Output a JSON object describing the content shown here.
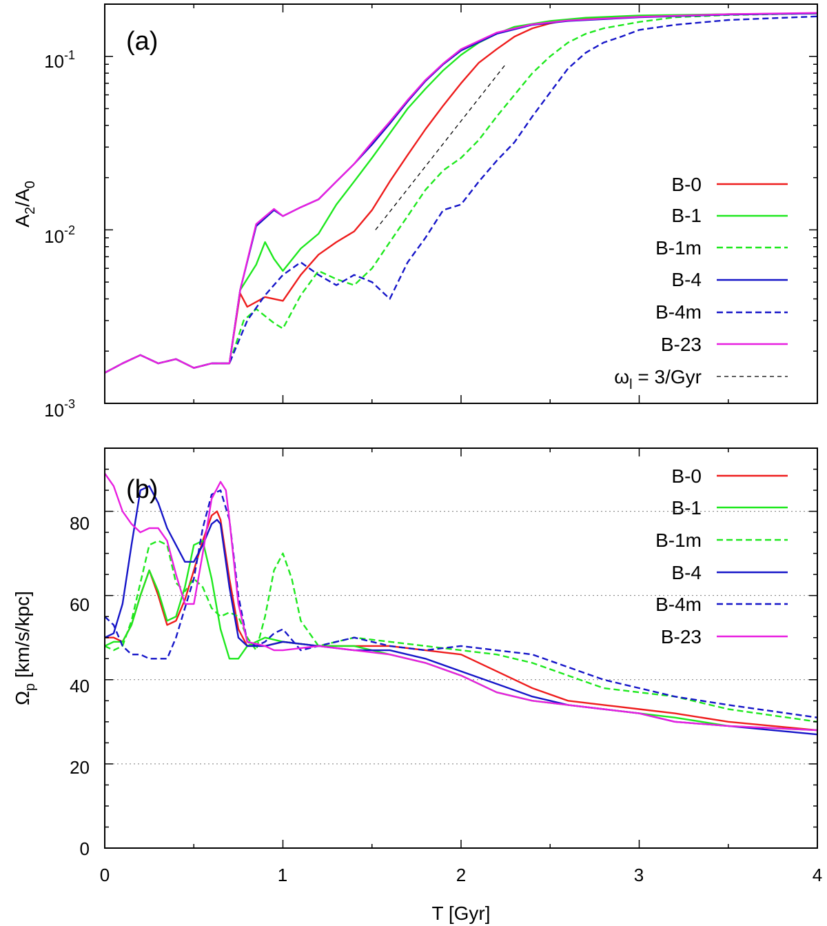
{
  "chart_data": [
    {
      "panel": "(a)",
      "type": "line",
      "ylabel": "A2/A0",
      "yscale": "log",
      "xlim": [
        0,
        4
      ],
      "ylim": [
        0.001,
        0.2
      ],
      "x_ticks": [
        0,
        1,
        2,
        3,
        4
      ],
      "y_tick_labels": [
        {
          "value": 0.1,
          "base": "10",
          "exp": "-1"
        },
        {
          "value": 0.01,
          "base": "10",
          "exp": "-2"
        },
        {
          "value": 0.001,
          "base": "10",
          "exp": "-3"
        }
      ],
      "legend_position": "right",
      "series": [
        {
          "name": "B-0",
          "color": "#ee1c1c",
          "dash": "solid",
          "x": [
            0,
            0.1,
            0.2,
            0.3,
            0.4,
            0.5,
            0.6,
            0.7,
            0.76,
            0.8,
            0.9,
            1.0,
            1.1,
            1.2,
            1.3,
            1.4,
            1.5,
            1.6,
            1.7,
            1.8,
            1.9,
            2.0,
            2.1,
            2.2,
            2.3,
            2.4,
            2.5,
            2.6,
            2.7,
            2.8,
            3.0,
            3.2,
            3.5,
            4.0
          ],
          "y": [
            0.0015,
            0.0017,
            0.0019,
            0.0017,
            0.0018,
            0.0016,
            0.0017,
            0.0017,
            0.0043,
            0.0036,
            0.0041,
            0.0039,
            0.0055,
            0.0072,
            0.0085,
            0.0098,
            0.013,
            0.019,
            0.027,
            0.038,
            0.052,
            0.07,
            0.092,
            0.11,
            0.13,
            0.145,
            0.155,
            0.162,
            0.165,
            0.168,
            0.17,
            0.172,
            0.175,
            0.177
          ]
        },
        {
          "name": "B-1",
          "color": "#1ee81e",
          "dash": "solid",
          "x": [
            0,
            0.1,
            0.2,
            0.3,
            0.4,
            0.5,
            0.6,
            0.7,
            0.76,
            0.85,
            0.9,
            0.95,
            1.0,
            1.1,
            1.2,
            1.3,
            1.4,
            1.5,
            1.6,
            1.7,
            1.8,
            1.9,
            2.0,
            2.1,
            2.2,
            2.3,
            2.5,
            2.7,
            3.0,
            3.5,
            4.0
          ],
          "y": [
            0.0015,
            0.0017,
            0.0019,
            0.0017,
            0.0018,
            0.0016,
            0.0017,
            0.0017,
            0.0045,
            0.0063,
            0.0085,
            0.0068,
            0.0058,
            0.0078,
            0.0095,
            0.014,
            0.019,
            0.026,
            0.036,
            0.05,
            0.065,
            0.083,
            0.102,
            0.12,
            0.135,
            0.148,
            0.16,
            0.167,
            0.172,
            0.175,
            0.177
          ]
        },
        {
          "name": "B-1m",
          "color": "#1ee81e",
          "dash": "dashed",
          "x": [
            0,
            0.1,
            0.2,
            0.3,
            0.4,
            0.5,
            0.6,
            0.7,
            0.78,
            0.85,
            0.95,
            1.0,
            1.1,
            1.2,
            1.3,
            1.4,
            1.5,
            1.6,
            1.7,
            1.8,
            1.9,
            2.0,
            2.1,
            2.2,
            2.3,
            2.4,
            2.5,
            2.6,
            2.7,
            2.8,
            3.0,
            3.2,
            3.5,
            4.0
          ],
          "y": [
            0.0015,
            0.0017,
            0.0019,
            0.0017,
            0.0018,
            0.0016,
            0.0017,
            0.0017,
            0.003,
            0.0035,
            0.0029,
            0.0027,
            0.0042,
            0.0058,
            0.0052,
            0.0048,
            0.006,
            0.0085,
            0.012,
            0.017,
            0.022,
            0.026,
            0.033,
            0.045,
            0.06,
            0.08,
            0.1,
            0.12,
            0.135,
            0.145,
            0.158,
            0.168,
            0.173,
            0.177
          ]
        },
        {
          "name": "B-4",
          "color": "#1515c8",
          "dash": "solid",
          "x": [
            0,
            0.1,
            0.2,
            0.3,
            0.4,
            0.5,
            0.6,
            0.7,
            0.76,
            0.85,
            0.95,
            1.0,
            1.1,
            1.2,
            1.3,
            1.4,
            1.5,
            1.6,
            1.7,
            1.8,
            1.9,
            2.0,
            2.2,
            2.4,
            2.6,
            3.0,
            3.5,
            4.0
          ],
          "y": [
            0.0015,
            0.0017,
            0.0019,
            0.0017,
            0.0018,
            0.0016,
            0.0017,
            0.0017,
            0.0045,
            0.0105,
            0.013,
            0.012,
            0.0135,
            0.015,
            0.019,
            0.024,
            0.031,
            0.041,
            0.055,
            0.072,
            0.09,
            0.108,
            0.135,
            0.152,
            0.16,
            0.168,
            0.174,
            0.177
          ]
        },
        {
          "name": "B-4m",
          "color": "#1515c8",
          "dash": "dashed",
          "x": [
            0,
            0.1,
            0.2,
            0.3,
            0.4,
            0.5,
            0.6,
            0.7,
            0.8,
            0.9,
            1.0,
            1.1,
            1.2,
            1.3,
            1.4,
            1.5,
            1.6,
            1.7,
            1.8,
            1.9,
            2.0,
            2.1,
            2.2,
            2.3,
            2.4,
            2.5,
            2.6,
            2.7,
            2.8,
            2.9,
            3.0,
            3.2,
            3.5,
            4.0
          ],
          "y": [
            0.0015,
            0.0017,
            0.0019,
            0.0017,
            0.0018,
            0.0016,
            0.0017,
            0.0017,
            0.003,
            0.0042,
            0.0055,
            0.0065,
            0.0055,
            0.0048,
            0.0055,
            0.005,
            0.004,
            0.0065,
            0.009,
            0.013,
            0.014,
            0.019,
            0.025,
            0.032,
            0.045,
            0.062,
            0.085,
            0.105,
            0.12,
            0.13,
            0.142,
            0.152,
            0.162,
            0.17
          ]
        },
        {
          "name": "B-23",
          "color": "#e81ee0",
          "dash": "solid",
          "x": [
            0,
            0.1,
            0.2,
            0.3,
            0.4,
            0.5,
            0.6,
            0.7,
            0.76,
            0.85,
            0.95,
            1.0,
            1.1,
            1.2,
            1.3,
            1.4,
            1.5,
            1.6,
            1.7,
            1.8,
            1.9,
            2.0,
            2.2,
            2.4,
            2.6,
            3.0,
            3.5,
            4.0
          ],
          "y": [
            0.0015,
            0.0017,
            0.0019,
            0.0017,
            0.0018,
            0.0016,
            0.0017,
            0.0017,
            0.0045,
            0.0108,
            0.0132,
            0.012,
            0.0135,
            0.015,
            0.019,
            0.024,
            0.032,
            0.042,
            0.056,
            0.073,
            0.091,
            0.11,
            0.137,
            0.153,
            0.161,
            0.169,
            0.175,
            0.178
          ]
        },
        {
          "name": "ωl = 3/Gyr",
          "color": "#000000",
          "dash": "fine",
          "x": [
            1.52,
            2.25
          ],
          "y": [
            0.01,
            0.09
          ]
        }
      ]
    },
    {
      "panel": "(b)",
      "type": "line",
      "ylabel": "Ωp [km/s/kpc]",
      "xlabel": "T [Gyr]",
      "xlim": [
        0,
        4
      ],
      "ylim": [
        0,
        95
      ],
      "x_ticks": [
        0,
        1,
        2,
        3,
        4
      ],
      "y_ticks": [
        0,
        20,
        40,
        60,
        80
      ],
      "grid_y": [
        20,
        40,
        60,
        80
      ],
      "legend_position": "top-right",
      "series": [
        {
          "name": "B-0",
          "color": "#ee1c1c",
          "dash": "solid",
          "x": [
            0,
            0.05,
            0.1,
            0.15,
            0.2,
            0.25,
            0.3,
            0.35,
            0.4,
            0.45,
            0.5,
            0.55,
            0.6,
            0.63,
            0.65,
            0.7,
            0.75,
            0.8,
            0.9,
            1.0,
            1.2,
            1.4,
            1.6,
            1.8,
            2.0,
            2.2,
            2.4,
            2.6,
            2.8,
            3.0,
            3.2,
            3.5,
            4.0
          ],
          "y": [
            50,
            50,
            49,
            53,
            60,
            66,
            60,
            53,
            54,
            59,
            66,
            73,
            79,
            80,
            78,
            64,
            52,
            48,
            48,
            49,
            48,
            48,
            48,
            47,
            46,
            42,
            38,
            35,
            34,
            33,
            32,
            30,
            28
          ]
        },
        {
          "name": "B-1",
          "color": "#1ee81e",
          "dash": "solid",
          "x": [
            0,
            0.05,
            0.1,
            0.15,
            0.2,
            0.25,
            0.3,
            0.35,
            0.4,
            0.45,
            0.5,
            0.55,
            0.6,
            0.65,
            0.7,
            0.75,
            0.8,
            0.9,
            1.0,
            1.2,
            1.4,
            1.6,
            1.8,
            2.0,
            2.2,
            2.4,
            2.6,
            2.8,
            3.0,
            3.2,
            3.5,
            4.0
          ],
          "y": [
            48,
            49,
            49,
            53,
            60,
            66,
            61,
            54,
            55,
            62,
            72,
            73,
            64,
            52,
            45,
            45,
            48,
            50,
            49,
            48,
            48,
            46,
            44,
            41,
            37,
            35,
            34,
            33,
            32,
            31,
            29,
            28
          ]
        },
        {
          "name": "B-1m",
          "color": "#1ee81e",
          "dash": "dashed",
          "x": [
            0,
            0.05,
            0.1,
            0.15,
            0.2,
            0.25,
            0.3,
            0.35,
            0.4,
            0.45,
            0.5,
            0.55,
            0.6,
            0.65,
            0.7,
            0.75,
            0.8,
            0.85,
            0.9,
            0.95,
            1.0,
            1.05,
            1.1,
            1.2,
            1.4,
            1.6,
            1.8,
            2.0,
            2.2,
            2.4,
            2.6,
            2.8,
            3.0,
            3.2,
            3.5,
            4.0
          ],
          "y": [
            48,
            47,
            48,
            54,
            63,
            72,
            73,
            72,
            63,
            61,
            64,
            62,
            57,
            55,
            56,
            55,
            50,
            47,
            55,
            66,
            70,
            64,
            54,
            48,
            50,
            49,
            48,
            47,
            46,
            44,
            41,
            38,
            37,
            36,
            33,
            30
          ]
        },
        {
          "name": "B-4",
          "color": "#1515c8",
          "dash": "solid",
          "x": [
            0,
            0.05,
            0.1,
            0.15,
            0.2,
            0.25,
            0.3,
            0.35,
            0.4,
            0.45,
            0.5,
            0.55,
            0.6,
            0.63,
            0.65,
            0.7,
            0.75,
            0.8,
            0.9,
            1.0,
            1.2,
            1.4,
            1.6,
            1.8,
            2.0,
            2.2,
            2.4,
            2.6,
            2.8,
            3.0,
            3.2,
            3.5,
            4.0
          ],
          "y": [
            50,
            51,
            58,
            72,
            85,
            86,
            82,
            76,
            72,
            68,
            68,
            72,
            77,
            78,
            77,
            62,
            50,
            48,
            48,
            49,
            48,
            47,
            47,
            45,
            42,
            39,
            36,
            34,
            33,
            32,
            30,
            29,
            27
          ]
        },
        {
          "name": "B-4m",
          "color": "#1515c8",
          "dash": "dashed",
          "x": [
            0,
            0.05,
            0.1,
            0.15,
            0.2,
            0.25,
            0.3,
            0.35,
            0.4,
            0.45,
            0.5,
            0.55,
            0.6,
            0.65,
            0.7,
            0.75,
            0.8,
            0.85,
            0.9,
            0.95,
            1.0,
            1.1,
            1.2,
            1.4,
            1.6,
            1.8,
            2.0,
            2.2,
            2.4,
            2.6,
            2.8,
            3.0,
            3.2,
            3.5,
            4.0
          ],
          "y": [
            55,
            53,
            48,
            46,
            46,
            45,
            45,
            45,
            50,
            57,
            64,
            76,
            84,
            85,
            78,
            60,
            49,
            48,
            49,
            51,
            52,
            47,
            48,
            50,
            48,
            47,
            48,
            47,
            46,
            43,
            40,
            38,
            36,
            34,
            31
          ]
        },
        {
          "name": "B-23",
          "color": "#e81ee0",
          "dash": "solid",
          "x": [
            0,
            0.05,
            0.1,
            0.15,
            0.2,
            0.25,
            0.3,
            0.35,
            0.4,
            0.45,
            0.5,
            0.55,
            0.6,
            0.65,
            0.68,
            0.7,
            0.75,
            0.8,
            0.9,
            0.95,
            1.0,
            1.2,
            1.4,
            1.6,
            1.8,
            2.0,
            2.2,
            2.4,
            2.6,
            2.8,
            3.0,
            3.2,
            3.5,
            4.0
          ],
          "y": [
            89,
            86,
            80,
            77,
            75,
            76,
            76,
            73,
            65,
            58,
            58,
            70,
            83,
            87,
            85,
            78,
            58,
            49,
            48,
            47,
            47,
            48,
            47,
            46,
            44,
            41,
            37,
            35,
            34,
            33,
            32,
            30,
            29,
            28
          ]
        }
      ]
    }
  ],
  "x_tick_labels": [
    "0",
    "1",
    "2",
    "3",
    "4"
  ],
  "panel_a": {
    "label": "(a)",
    "ylabel_main": "A",
    "ylabel_sub1": "2",
    "ylabel_mid": "/A",
    "ylabel_sub2": "0",
    "legend": [
      "B-0",
      "B-1",
      "B-1m",
      "B-4",
      "B-4m",
      "B-23"
    ],
    "legend_extra_main": "ω",
    "legend_extra_sub": "l",
    "legend_extra_rest": " = 3/Gyr"
  },
  "panel_b": {
    "label": "(b)",
    "ylabel_main": "Ω",
    "ylabel_sub": "p",
    "ylabel_rest": " [km/s/kpc]",
    "y_tick_labels": [
      "0",
      "20",
      "40",
      "60",
      "80"
    ],
    "legend": [
      "B-0",
      "B-1",
      "B-1m",
      "B-4",
      "B-4m",
      "B-23"
    ],
    "xlabel": "T [Gyr]"
  }
}
